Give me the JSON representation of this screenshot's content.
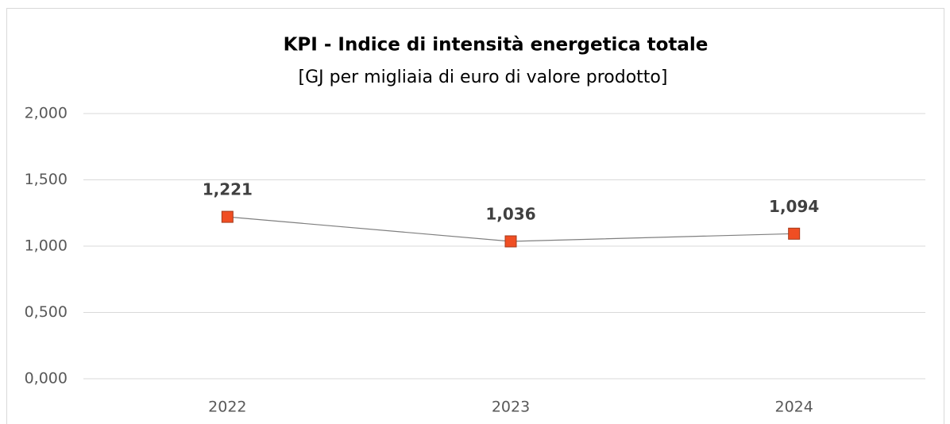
{
  "chart_data": {
    "type": "line",
    "title": "KPI - Indice di intensità energetica totale",
    "subtitle": "[GJ per migliaia di euro di valore prodotto]",
    "categories": [
      "2022",
      "2023",
      "2024"
    ],
    "series": [
      {
        "color": "#f04e23",
        "values": [
          1.221,
          1.036,
          1.094
        ],
        "value_labels": [
          "1,221",
          "1,036",
          "1,094"
        ]
      }
    ],
    "ylim": [
      0,
      2
    ],
    "yticks": [
      {
        "value": 0,
        "label": "0,000"
      },
      {
        "value": 0.5,
        "label": "0,500"
      },
      {
        "value": 1,
        "label": "1,000"
      },
      {
        "value": 1.5,
        "label": "1,500"
      },
      {
        "value": 2,
        "label": "2,000"
      }
    ],
    "grid": true
  }
}
